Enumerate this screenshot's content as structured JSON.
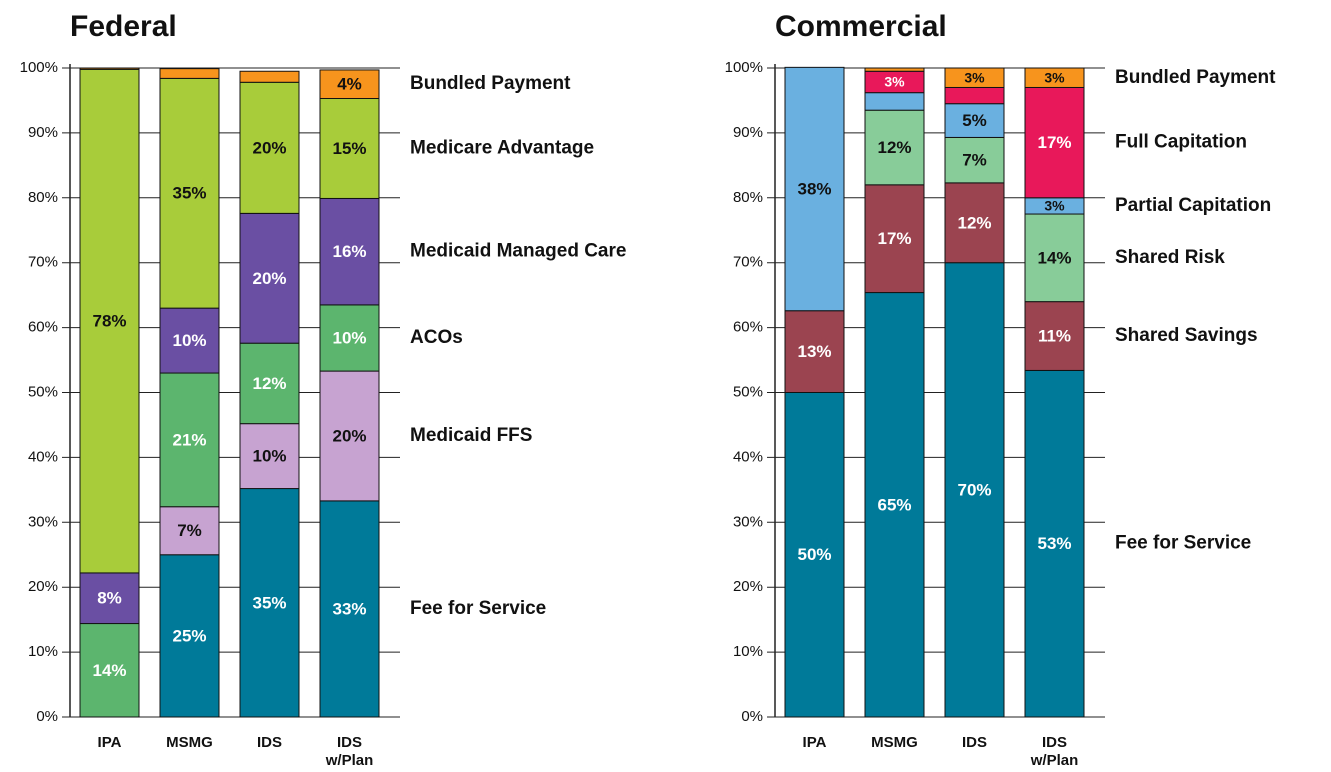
{
  "chart_data": [
    {
      "type": "bar",
      "stacked": true,
      "title": "Federal",
      "categories": [
        "IPA",
        "MSMG",
        "IDS",
        "IDS w/Plan"
      ],
      "ylim": [
        0,
        100
      ],
      "yticks": [
        {
          "value": 0,
          "label": "0%"
        },
        {
          "value": 10,
          "label": "10%"
        },
        {
          "value": 20,
          "label": "20%"
        },
        {
          "value": 30,
          "label": "30%"
        },
        {
          "value": 40,
          "label": "40%"
        },
        {
          "value": 50,
          "label": "50%"
        },
        {
          "value": 60,
          "label": "60%"
        },
        {
          "value": 70,
          "label": "70%"
        },
        {
          "value": 80,
          "label": "80%"
        },
        {
          "value": 90,
          "label": "90%"
        },
        {
          "value": 100,
          "label": "100%"
        }
      ],
      "grid": true,
      "legend": "right",
      "series": [
        {
          "name": "Fee for Service",
          "color": "#007a99",
          "values": [
            0,
            25,
            35.2,
            33.3
          ],
          "value_labels": [
            null,
            "25%",
            "35%",
            "33%"
          ]
        },
        {
          "name": "Medicaid FFS",
          "color": "#c7a3d1",
          "values": [
            0,
            7.4,
            10,
            20
          ],
          "value_labels": [
            null,
            "7%",
            "10%",
            "20%"
          ]
        },
        {
          "name": "ACOs",
          "color": "#5cb56e",
          "values": [
            14.4,
            20.6,
            12.4,
            10.2
          ],
          "value_labels": [
            "14%",
            "21%",
            "12%",
            "10%"
          ]
        },
        {
          "name": "Medicaid Managed Care",
          "color": "#6a4fa3",
          "values": [
            7.8,
            10,
            20,
            16.4
          ],
          "value_labels": [
            "8%",
            "10%",
            "20%",
            "16%"
          ]
        },
        {
          "name": "Medicare Advantage",
          "color": "#a8cc3a",
          "values": [
            77.6,
            35.4,
            20.2,
            15.4
          ],
          "value_labels": [
            "78%",
            "35%",
            "20%",
            "15%"
          ]
        },
        {
          "name": "Bundled Payment",
          "color": "#f7941d",
          "values": [
            0.2,
            1.5,
            1.7,
            4.4
          ],
          "value_labels": [
            null,
            null,
            null,
            "4%"
          ]
        }
      ]
    },
    {
      "type": "bar",
      "stacked": true,
      "title": "Commercial",
      "categories": [
        "IPA",
        "MSMG",
        "IDS",
        "IDS w/Plan"
      ],
      "ylim": [
        0,
        100
      ],
      "yticks": [
        {
          "value": 0,
          "label": "0%"
        },
        {
          "value": 10,
          "label": "10%"
        },
        {
          "value": 20,
          "label": "20%"
        },
        {
          "value": 30,
          "label": "30%"
        },
        {
          "value": 40,
          "label": "40%"
        },
        {
          "value": 50,
          "label": "50%"
        },
        {
          "value": 60,
          "label": "60%"
        },
        {
          "value": 70,
          "label": "70%"
        },
        {
          "value": 80,
          "label": "80%"
        },
        {
          "value": 90,
          "label": "90%"
        },
        {
          "value": 100,
          "label": "100%"
        }
      ],
      "grid": true,
      "legend": "right",
      "series": [
        {
          "name": "Fee for Service",
          "color": "#007a99",
          "values": [
            50,
            65.4,
            70,
            53.4
          ],
          "value_labels": [
            "50%",
            "65%",
            "70%",
            "53%"
          ]
        },
        {
          "name": "Shared Savings",
          "color": "#9b4450",
          "values": [
            12.6,
            16.6,
            12.3,
            10.6
          ],
          "value_labels": [
            "13%",
            "17%",
            "12%",
            "11%"
          ]
        },
        {
          "name": "Shared Risk",
          "color": "#88cc99",
          "values": [
            0,
            11.5,
            7,
            13.5
          ],
          "value_labels": [
            null,
            "12%",
            "7%",
            "14%"
          ]
        },
        {
          "name": "Partial Capitation",
          "color": "#6ab0e0",
          "values": [
            37.5,
            2.7,
            5.2,
            2.5
          ],
          "value_labels": [
            "38%",
            null,
            "5%",
            "3%"
          ]
        },
        {
          "name": "Full Capitation",
          "color": "#e8185a",
          "values": [
            0,
            3.3,
            2.5,
            17
          ],
          "value_labels": [
            null,
            "3%",
            null,
            "17%"
          ]
        },
        {
          "name": "Bundled Payment",
          "color": "#f7941d",
          "values": [
            0,
            0.5,
            3,
            3
          ],
          "value_labels": [
            null,
            null,
            "3%",
            "3%"
          ]
        }
      ]
    }
  ]
}
